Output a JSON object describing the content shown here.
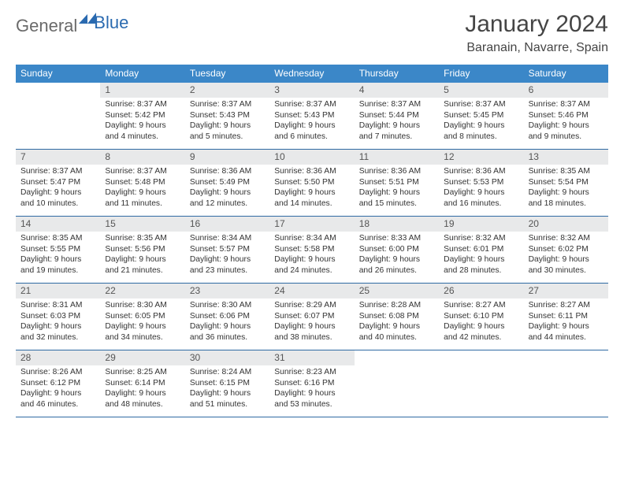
{
  "logo": {
    "text1": "General",
    "text2": "Blue"
  },
  "title": {
    "month": "January 2024",
    "location": "Baranain, Navarre, Spain"
  },
  "colors": {
    "headerBg": "#3b87c8",
    "headerFg": "#ffffff",
    "dayNumBg": "#e8e9ea",
    "rowBorder": "#2f6aa3",
    "textColor": "#333333",
    "logoBlue": "#2a6ab0"
  },
  "daysOfWeek": [
    "Sunday",
    "Monday",
    "Tuesday",
    "Wednesday",
    "Thursday",
    "Friday",
    "Saturday"
  ],
  "weeks": [
    [
      {
        "n": "",
        "sunrise": "",
        "sunset": "",
        "daylight": ""
      },
      {
        "n": "1",
        "sunrise": "Sunrise: 8:37 AM",
        "sunset": "Sunset: 5:42 PM",
        "daylight": "Daylight: 9 hours and 4 minutes."
      },
      {
        "n": "2",
        "sunrise": "Sunrise: 8:37 AM",
        "sunset": "Sunset: 5:43 PM",
        "daylight": "Daylight: 9 hours and 5 minutes."
      },
      {
        "n": "3",
        "sunrise": "Sunrise: 8:37 AM",
        "sunset": "Sunset: 5:43 PM",
        "daylight": "Daylight: 9 hours and 6 minutes."
      },
      {
        "n": "4",
        "sunrise": "Sunrise: 8:37 AM",
        "sunset": "Sunset: 5:44 PM",
        "daylight": "Daylight: 9 hours and 7 minutes."
      },
      {
        "n": "5",
        "sunrise": "Sunrise: 8:37 AM",
        "sunset": "Sunset: 5:45 PM",
        "daylight": "Daylight: 9 hours and 8 minutes."
      },
      {
        "n": "6",
        "sunrise": "Sunrise: 8:37 AM",
        "sunset": "Sunset: 5:46 PM",
        "daylight": "Daylight: 9 hours and 9 minutes."
      }
    ],
    [
      {
        "n": "7",
        "sunrise": "Sunrise: 8:37 AM",
        "sunset": "Sunset: 5:47 PM",
        "daylight": "Daylight: 9 hours and 10 minutes."
      },
      {
        "n": "8",
        "sunrise": "Sunrise: 8:37 AM",
        "sunset": "Sunset: 5:48 PM",
        "daylight": "Daylight: 9 hours and 11 minutes."
      },
      {
        "n": "9",
        "sunrise": "Sunrise: 8:36 AM",
        "sunset": "Sunset: 5:49 PM",
        "daylight": "Daylight: 9 hours and 12 minutes."
      },
      {
        "n": "10",
        "sunrise": "Sunrise: 8:36 AM",
        "sunset": "Sunset: 5:50 PM",
        "daylight": "Daylight: 9 hours and 14 minutes."
      },
      {
        "n": "11",
        "sunrise": "Sunrise: 8:36 AM",
        "sunset": "Sunset: 5:51 PM",
        "daylight": "Daylight: 9 hours and 15 minutes."
      },
      {
        "n": "12",
        "sunrise": "Sunrise: 8:36 AM",
        "sunset": "Sunset: 5:53 PM",
        "daylight": "Daylight: 9 hours and 16 minutes."
      },
      {
        "n": "13",
        "sunrise": "Sunrise: 8:35 AM",
        "sunset": "Sunset: 5:54 PM",
        "daylight": "Daylight: 9 hours and 18 minutes."
      }
    ],
    [
      {
        "n": "14",
        "sunrise": "Sunrise: 8:35 AM",
        "sunset": "Sunset: 5:55 PM",
        "daylight": "Daylight: 9 hours and 19 minutes."
      },
      {
        "n": "15",
        "sunrise": "Sunrise: 8:35 AM",
        "sunset": "Sunset: 5:56 PM",
        "daylight": "Daylight: 9 hours and 21 minutes."
      },
      {
        "n": "16",
        "sunrise": "Sunrise: 8:34 AM",
        "sunset": "Sunset: 5:57 PM",
        "daylight": "Daylight: 9 hours and 23 minutes."
      },
      {
        "n": "17",
        "sunrise": "Sunrise: 8:34 AM",
        "sunset": "Sunset: 5:58 PM",
        "daylight": "Daylight: 9 hours and 24 minutes."
      },
      {
        "n": "18",
        "sunrise": "Sunrise: 8:33 AM",
        "sunset": "Sunset: 6:00 PM",
        "daylight": "Daylight: 9 hours and 26 minutes."
      },
      {
        "n": "19",
        "sunrise": "Sunrise: 8:32 AM",
        "sunset": "Sunset: 6:01 PM",
        "daylight": "Daylight: 9 hours and 28 minutes."
      },
      {
        "n": "20",
        "sunrise": "Sunrise: 8:32 AM",
        "sunset": "Sunset: 6:02 PM",
        "daylight": "Daylight: 9 hours and 30 minutes."
      }
    ],
    [
      {
        "n": "21",
        "sunrise": "Sunrise: 8:31 AM",
        "sunset": "Sunset: 6:03 PM",
        "daylight": "Daylight: 9 hours and 32 minutes."
      },
      {
        "n": "22",
        "sunrise": "Sunrise: 8:30 AM",
        "sunset": "Sunset: 6:05 PM",
        "daylight": "Daylight: 9 hours and 34 minutes."
      },
      {
        "n": "23",
        "sunrise": "Sunrise: 8:30 AM",
        "sunset": "Sunset: 6:06 PM",
        "daylight": "Daylight: 9 hours and 36 minutes."
      },
      {
        "n": "24",
        "sunrise": "Sunrise: 8:29 AM",
        "sunset": "Sunset: 6:07 PM",
        "daylight": "Daylight: 9 hours and 38 minutes."
      },
      {
        "n": "25",
        "sunrise": "Sunrise: 8:28 AM",
        "sunset": "Sunset: 6:08 PM",
        "daylight": "Daylight: 9 hours and 40 minutes."
      },
      {
        "n": "26",
        "sunrise": "Sunrise: 8:27 AM",
        "sunset": "Sunset: 6:10 PM",
        "daylight": "Daylight: 9 hours and 42 minutes."
      },
      {
        "n": "27",
        "sunrise": "Sunrise: 8:27 AM",
        "sunset": "Sunset: 6:11 PM",
        "daylight": "Daylight: 9 hours and 44 minutes."
      }
    ],
    [
      {
        "n": "28",
        "sunrise": "Sunrise: 8:26 AM",
        "sunset": "Sunset: 6:12 PM",
        "daylight": "Daylight: 9 hours and 46 minutes."
      },
      {
        "n": "29",
        "sunrise": "Sunrise: 8:25 AM",
        "sunset": "Sunset: 6:14 PM",
        "daylight": "Daylight: 9 hours and 48 minutes."
      },
      {
        "n": "30",
        "sunrise": "Sunrise: 8:24 AM",
        "sunset": "Sunset: 6:15 PM",
        "daylight": "Daylight: 9 hours and 51 minutes."
      },
      {
        "n": "31",
        "sunrise": "Sunrise: 8:23 AM",
        "sunset": "Sunset: 6:16 PM",
        "daylight": "Daylight: 9 hours and 53 minutes."
      },
      {
        "n": "",
        "sunrise": "",
        "sunset": "",
        "daylight": ""
      },
      {
        "n": "",
        "sunrise": "",
        "sunset": "",
        "daylight": ""
      },
      {
        "n": "",
        "sunrise": "",
        "sunset": "",
        "daylight": ""
      }
    ]
  ]
}
